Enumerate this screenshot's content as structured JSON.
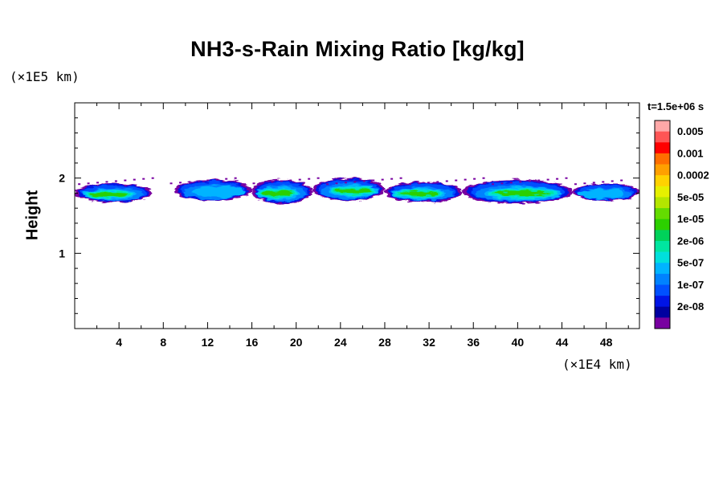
{
  "chart_data": {
    "type": "heatmap",
    "title": "NH3-s-Rain Mixing Ratio [kg/kg]",
    "ylabel": "Height",
    "xlabel": "",
    "x_unit": "(×1E4 km)",
    "y_unit": "(×1E5 km)",
    "time_label": "t=1.5e+06 s",
    "xlim": [
      0,
      51
    ],
    "ylim": [
      0,
      3
    ],
    "x_ticks": [
      4,
      8,
      12,
      16,
      20,
      24,
      28,
      32,
      36,
      40,
      44,
      48
    ],
    "y_ticks": [
      1,
      2
    ],
    "grid": false,
    "legend_placement": "right",
    "levels": [
      "0.005",
      "0.001",
      "0.0002",
      "5e-05",
      "1e-05",
      "2e-06",
      "5e-07",
      "1e-07",
      "2e-08"
    ],
    "colors": [
      "#ffa8a8",
      "#ff5555",
      "#ff0000",
      "#ff6e00",
      "#ffa000",
      "#ffd200",
      "#e6f000",
      "#b4e600",
      "#64dc00",
      "#2cd000",
      "#00d25a",
      "#00e6a0",
      "#00e0dc",
      "#00b4ff",
      "#0082ff",
      "#0050ff",
      "#0014e6",
      "#0000a0",
      "#7800a0"
    ],
    "cloud_layer": [
      {
        "x": [
          0,
          7
        ],
        "y_bottom": 1.7,
        "y_top": 1.95,
        "peak": "1e-05"
      },
      {
        "x": [
          9,
          16
        ],
        "y_bottom": 1.72,
        "y_top": 2.0,
        "peak": "5e-07"
      },
      {
        "x": [
          16,
          21.5
        ],
        "y_bottom": 1.68,
        "y_top": 2.0,
        "peak": "1e-05"
      },
      {
        "x": [
          21.5,
          28
        ],
        "y_bottom": 1.72,
        "y_top": 2.02,
        "peak": "1e-05"
      },
      {
        "x": [
          28,
          35
        ],
        "y_bottom": 1.7,
        "y_top": 1.97,
        "peak": "1e-05"
      },
      {
        "x": [
          35,
          45
        ],
        "y_bottom": 1.68,
        "y_top": 2.0,
        "peak": "1e-05"
      },
      {
        "x": [
          45,
          51
        ],
        "y_bottom": 1.72,
        "y_top": 1.95,
        "peak": "5e-07"
      }
    ]
  }
}
